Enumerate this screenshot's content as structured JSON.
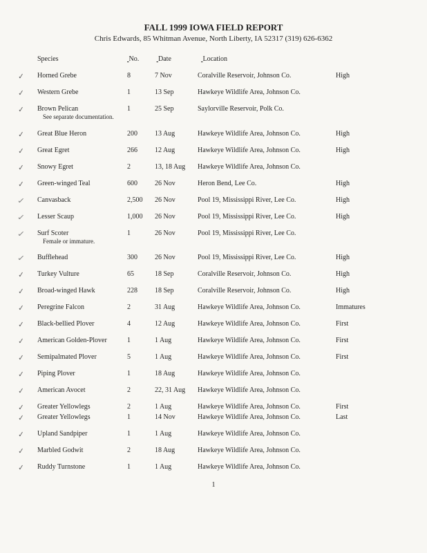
{
  "title": "FALL 1999 IOWA FIELD REPORT",
  "subtitle": "Chris Edwards, 85 Whitman Avenue, North Liberty, IA 52317 (319) 626-6362",
  "headers": {
    "species": "Species",
    "no": "No.",
    "date": "Date",
    "location": "Location"
  },
  "rows": [
    {
      "species": "Horned Grebe",
      "no": "8",
      "date": "7 Nov",
      "loc": "Coralville Reservoir, Johnson Co.",
      "note": "High"
    },
    {
      "species": "Western Grebe",
      "no": "1",
      "date": "13 Sep",
      "loc": "Hawkeye Wildlife Area, Johnson Co.",
      "note": ""
    },
    {
      "species": "Brown Pelican",
      "sub": "See separate documentation.",
      "no": "1",
      "date": "25 Sep",
      "loc": "Saylorville Reservoir, Polk Co.",
      "note": ""
    },
    {
      "species": "Great Blue Heron",
      "no": "200",
      "date": "13 Aug",
      "loc": "Hawkeye Wildlife Area, Johnson Co.",
      "note": "High"
    },
    {
      "species": "Great Egret",
      "no": "266",
      "date": "12 Aug",
      "loc": "Hawkeye Wildlife Area, Johnson Co.",
      "note": "High"
    },
    {
      "species": "Snowy Egret",
      "no": "2",
      "date": "13, 18 Aug",
      "loc": "Hawkeye Wildlife Area, Johnson Co.",
      "note": ""
    },
    {
      "species": "Green-winged Teal",
      "no": "600",
      "date": "26 Nov",
      "loc": "Heron Bend, Lee Co.",
      "note": "High"
    },
    {
      "species": "Canvasback",
      "no": "2,500",
      "date": "26 Nov",
      "loc": "Pool 19, Mississippi River, Lee Co.",
      "note": "High"
    },
    {
      "species": "Lesser Scaup",
      "no": "1,000",
      "date": "26 Nov",
      "loc": "Pool 19, Mississippi River, Lee Co.",
      "note": "High"
    },
    {
      "species": "Surf Scoter",
      "sub": "Female or immature.",
      "no": "1",
      "date": "26 Nov",
      "loc": "Pool 19, Mississippi River, Lee Co.",
      "note": ""
    },
    {
      "species": "Bufflehead",
      "no": "300",
      "date": "26 Nov",
      "loc": "Pool 19, Mississippi River, Lee Co.",
      "note": "High"
    },
    {
      "species": "Turkey Vulture",
      "no": "65",
      "date": "18 Sep",
      "loc": "Coralville Reservoir, Johnson Co.",
      "note": "High"
    },
    {
      "species": "Broad-winged Hawk",
      "no": "228",
      "date": "18 Sep",
      "loc": "Coralville Reservoir, Johnson Co.",
      "note": "High"
    },
    {
      "species": "Peregrine Falcon",
      "no": "2",
      "date": "31 Aug",
      "loc": "Hawkeye Wildlife Area, Johnson Co.",
      "note": "Immatures"
    },
    {
      "species": "Black-bellied Plover",
      "no": "4",
      "date": "12 Aug",
      "loc": "Hawkeye Wildlife Area, Johnson Co.",
      "note": "First"
    },
    {
      "species": "American Golden-Plover",
      "no": "1",
      "date": "1 Aug",
      "loc": "Hawkeye Wildlife Area, Johnson Co.",
      "note": "First"
    },
    {
      "species": "Semipalmated Plover",
      "no": "5",
      "date": "1 Aug",
      "loc": "Hawkeye Wildlife Area, Johnson Co.",
      "note": "First"
    },
    {
      "species": "Piping Plover",
      "no": "1",
      "date": "18 Aug",
      "loc": "Hawkeye Wildlife Area, Johnson Co.",
      "note": ""
    },
    {
      "species": "American Avocet",
      "no": "2",
      "date": "22, 31 Aug",
      "loc": "Hawkeye Wildlife Area, Johnson Co.",
      "note": ""
    },
    {
      "species": "Greater Yellowlegs",
      "no": "2",
      "date": "1 Aug",
      "loc": "Hawkeye Wildlife Area, Johnson Co.",
      "note": "First",
      "tight": true
    },
    {
      "species": "Greater Yellowlegs",
      "no": "1",
      "date": "14 Nov",
      "loc": "Hawkeye Wildlife Area, Johnson Co.",
      "note": "Last"
    },
    {
      "species": "Upland Sandpiper",
      "no": "1",
      "date": "1 Aug",
      "loc": "Hawkeye Wildlife Area, Johnson Co.",
      "note": ""
    },
    {
      "species": "Marbled Godwit",
      "no": "2",
      "date": "18 Aug",
      "loc": "Hawkeye Wildlife Area, Johnson Co.",
      "note": ""
    },
    {
      "species": "Ruddy Turnstone",
      "no": "1",
      "date": "1 Aug",
      "loc": "Hawkeye Wildlife Area, Johnson Co.",
      "note": ""
    }
  ],
  "pagenum": "1"
}
